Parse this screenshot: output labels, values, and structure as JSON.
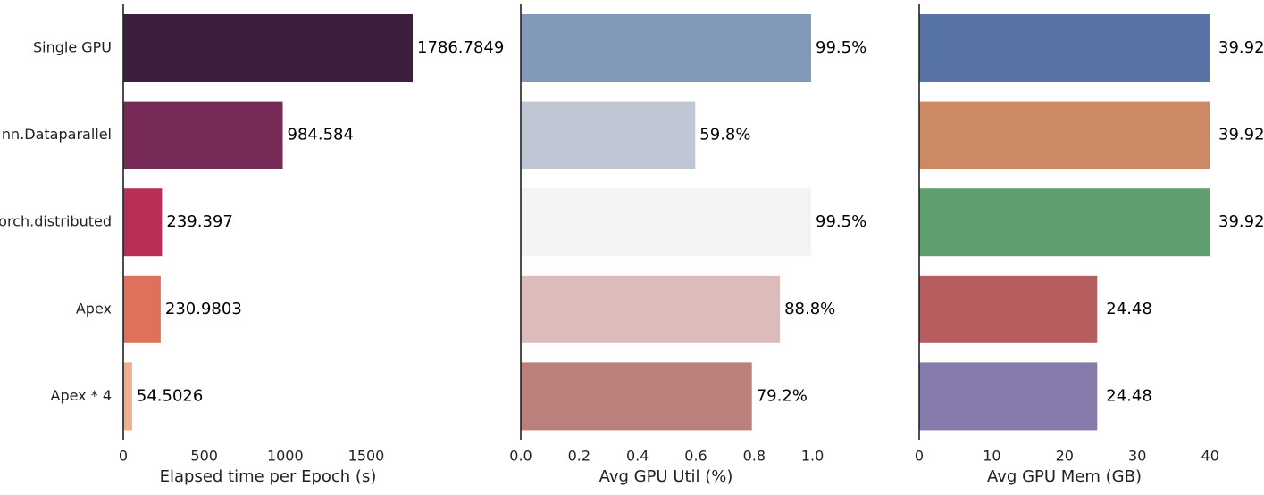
{
  "chart_data": [
    {
      "type": "bar",
      "orientation": "horizontal",
      "categories": [
        "Single GPU",
        "nn.Dataparallel",
        "torch.distributed",
        "Apex",
        "Apex * 4"
      ],
      "values": [
        1786.7849,
        984.584,
        239.397,
        230.9803,
        54.5026
      ],
      "value_labels": [
        "1786.7849",
        "984.584",
        "239.397",
        "230.9803",
        "54.5026"
      ],
      "colors": [
        "#3b1f3c",
        "#772a55",
        "#b82f55",
        "#e0705a",
        "#edaf8e"
      ],
      "xlabel": "Elapsed time per Epoch (s)",
      "xlim": [
        0,
        1786.7849
      ],
      "xticks": [
        0,
        500,
        1000,
        1500
      ],
      "xtick_labels": [
        "0",
        "500",
        "1000",
        "1500"
      ],
      "show_category_labels": true,
      "grid": false
    },
    {
      "type": "bar",
      "orientation": "horizontal",
      "categories": [
        "Single GPU",
        "nn.Dataparallel",
        "torch.distributed",
        "Apex",
        "Apex * 4"
      ],
      "values": [
        0.995,
        0.598,
        0.995,
        0.888,
        0.792
      ],
      "value_labels": [
        "99.5%",
        "59.8%",
        "99.5%",
        "88.8%",
        "79.2%"
      ],
      "colors": [
        "#8399b9",
        "#bfc6d4",
        "#f6f4f3",
        "#dbbcba",
        "#bb7f7c"
      ],
      "xlabel": "Avg GPU Util (%)",
      "xlim": [
        0,
        0.995
      ],
      "xticks": [
        0,
        0.2,
        0.4,
        0.6,
        0.8,
        1.0
      ],
      "xtick_labels": [
        "0.0",
        "0.2",
        "0.4",
        "0.6",
        "0.8",
        "1.0"
      ],
      "show_category_labels": false,
      "grid": false
    },
    {
      "type": "bar",
      "orientation": "horizontal",
      "categories": [
        "Single GPU",
        "nn.Dataparallel",
        "torch.distributed",
        "Apex",
        "Apex * 4"
      ],
      "values": [
        39.92,
        39.92,
        39.92,
        24.48,
        24.48
      ],
      "value_labels": [
        "39.92",
        "39.92",
        "39.92",
        "24.48",
        "24.48"
      ],
      "colors": [
        "#5874a4",
        "#cc8963",
        "#5e9e6f",
        "#b65e5f",
        "#8679ab"
      ],
      "xlabel": "Avg GPU Mem (GB)",
      "xlim": [
        0,
        39.92
      ],
      "xticks": [
        0,
        10,
        20,
        30,
        40
      ],
      "xtick_labels": [
        "0",
        "10",
        "20",
        "30",
        "40"
      ],
      "show_category_labels": false,
      "grid": false
    }
  ]
}
